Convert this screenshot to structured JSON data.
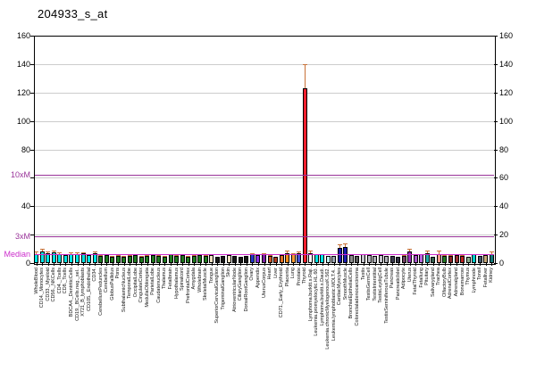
{
  "title": "204933_s_at",
  "axes": {
    "left_numeric_labels": [
      0,
      40,
      80,
      100,
      120,
      140,
      160
    ],
    "right_numeric_labels": [
      0,
      20,
      40,
      60,
      80,
      100,
      120,
      140,
      160
    ],
    "special_labels": [
      "10xM",
      "3xM",
      "Median"
    ]
  },
  "chart_data": {
    "type": "bar",
    "title": "204933_s_at",
    "xlabel": "",
    "ylabel": "",
    "ylim": [
      0,
      160
    ],
    "yticks": [
      0,
      20,
      40,
      60,
      80,
      100,
      120,
      140,
      160
    ],
    "grid": true,
    "legend_position": "none",
    "reference_lines": [
      {
        "label": "10xM",
        "value": 62,
        "color": "#993399"
      },
      {
        "label": "3xM",
        "value": 19,
        "color": "#993399"
      },
      {
        "label": "Median",
        "value": 6.3,
        "color": "#CC2ECC"
      }
    ],
    "error_bar_color": "#C87137",
    "categories": [
      "WholeBlood",
      "CD14._Monocytes",
      "CD33._Myeloid",
      "CD56._NKCells",
      "CD4._Tcells",
      "CD8._Tcells",
      "BDCA4._DentriticCells",
      "CD19._BCells.neg._sel..",
      "X721_B_lymphoblasts",
      "CD105._Endothelial",
      "CD34.",
      "CerebellumPeduncles",
      "Cerebellum",
      "GlobusPallidus",
      "Pons",
      "SubthalamicNucleus",
      "TemporalLobe",
      "OccipitalLobe",
      "CingulateCortex",
      "MedullaOblongata",
      "ParietalLobe",
      "Caudatenucleus",
      "Thalamus",
      "Fetalbrain",
      "Hypothalamus",
      "Spinalcord",
      "PrefrontalCortex",
      "Amygdala",
      "Wholebrain",
      "SkeletalMuscle",
      "Tongue",
      "SuperiorCervicalGanglion",
      "TrigeminalGanglion",
      "Skin",
      "AtrioventricularNode",
      "CiliaryGanglion",
      "DorsalRootGanglion",
      "Ovary",
      "Appendix",
      "UterusCorpus",
      "Heart",
      "Liver",
      "CD71._Early_Erythroid",
      "Placenta",
      "Lung",
      "Prostate",
      "Thyroid",
      "Lymphoma.burkitt.s.Raji.",
      "Leukemia.promyelocytic.HL.60.",
      "Lymphoma.burkitt.s.Daudi.",
      "Leukemia.chronicMyelogenousK.562.",
      "Leukemia.lymphoblastic.MOLT.4..",
      "CardiacMyocytes",
      "SmoothMuscle",
      "BronchialEpithelialCells",
      "Colorectaladenocarcinoma",
      "Testis",
      "TestisGermCell",
      "TestisInterstitial",
      "TestisLeydigCell",
      "TestisSeminiferousTubule",
      "Pancreas",
      "PancreaticIslet",
      "Adipocyte",
      "Uterus",
      "FetalThyroid",
      "Fetallung",
      "Pituitary",
      "Salivarygland",
      "Trachea",
      "OlfactoryBulb",
      "AdrenalCortex",
      "Adrenalgland",
      "Bonemarrow",
      "Thymus",
      "Lymphnode",
      "Tonsil",
      "Fetalliver",
      "Kidney"
    ],
    "values": [
      6.5,
      8,
      7,
      7.5,
      6.5,
      5.5,
      6.5,
      6.5,
      7,
      5.5,
      7,
      5,
      5.5,
      4.5,
      5,
      4.5,
      5,
      5.5,
      4.5,
      5,
      5.5,
      5,
      4.5,
      6,
      5,
      5.5,
      4.5,
      5,
      5.5,
      5,
      5.5,
      4.5,
      5,
      5.5,
      5,
      4.5,
      5,
      6,
      5.5,
      6,
      5,
      4.5,
      5.5,
      7,
      6,
      7,
      123,
      7,
      6,
      6,
      5,
      5,
      10.5,
      11.5,
      5.5,
      5,
      6,
      5.5,
      5,
      5.5,
      5,
      5,
      4.5,
      5,
      8,
      5.5,
      6,
      7,
      4.5,
      6.5,
      5,
      5,
      5.5,
      5,
      4.5,
      6,
      5,
      5.5,
      6.5
    ],
    "errors_upper": [
      1.5,
      2,
      1,
      1,
      0.8,
      0.8,
      1,
      1,
      0.8,
      0.8,
      1,
      0.5,
      0.5,
      0.5,
      0.5,
      0.5,
      0.5,
      0.5,
      0.5,
      0.5,
      0.5,
      0.5,
      0.5,
      0.5,
      0.5,
      0.5,
      0.5,
      0.5,
      0.5,
      0.5,
      0.5,
      0,
      0,
      0.5,
      0,
      0,
      0,
      1,
      0,
      1,
      0.5,
      0,
      1,
      1.5,
      1,
      1,
      17,
      2,
      0.5,
      0.5,
      0,
      0,
      2.5,
      2.5,
      0.5,
      0,
      0.5,
      0,
      0,
      0,
      0,
      0,
      0,
      0.5,
      2,
      0.5,
      0.5,
      2,
      0,
      2,
      0.5,
      0.5,
      0.5,
      0.5,
      0,
      0.5,
      0,
      0.5,
      1.5
    ],
    "bar_colors": [
      "#00E5E5",
      "#00E5E5",
      "#00E5E5",
      "#00E5E5",
      "#00E5E5",
      "#00E5E5",
      "#00E5E5",
      "#00E5E5",
      "#00E5E5",
      "#00E5E5",
      "#00E5E5",
      "#1E7A1E",
      "#1E7A1E",
      "#1E7A1E",
      "#1E7A1E",
      "#1E7A1E",
      "#1E7A1E",
      "#1E7A1E",
      "#1E7A1E",
      "#1E7A1E",
      "#1E7A1E",
      "#1E7A1E",
      "#1E7A1E",
      "#1E7A1E",
      "#1E7A1E",
      "#1E7A1E",
      "#1E7A1E",
      "#1E7A1E",
      "#1E7A1E",
      "#1E7A1E",
      "#EFE0C0",
      "#161616",
      "#161616",
      "#EFE0C0",
      "#161616",
      "#161616",
      "#161616",
      "#2436C8",
      "#8A2BE2",
      "#7B1FA2",
      "#C85A28",
      "#B03A1E",
      "#E07020",
      "#FF8C1A",
      "#FF9A33",
      "#4450D0",
      "#EE1F2E",
      "#FFFFFF",
      "#00E5E5",
      "#00E5E5",
      "#BFEFEF",
      "#9AA4B0",
      "#1C1CB0",
      "#1C1CB0",
      "#8C8C8C",
      "#5A5A5A",
      "#C4C4CC",
      "#B8B8C0",
      "#ADADB5",
      "#C4C4CC",
      "#B0B0B8",
      "#3C3C50",
      "#2E2E40",
      "#6E4060",
      "#9A30BE",
      "#A855CC",
      "#B866DD",
      "#20A8A8",
      "#35604F",
      "#EE9A88",
      "#227A22",
      "#8A2424",
      "#993333",
      "#BB2222",
      "#8FAF8F",
      "#00CCCC",
      "#44566A",
      "#C8A878",
      "#137878"
    ]
  }
}
